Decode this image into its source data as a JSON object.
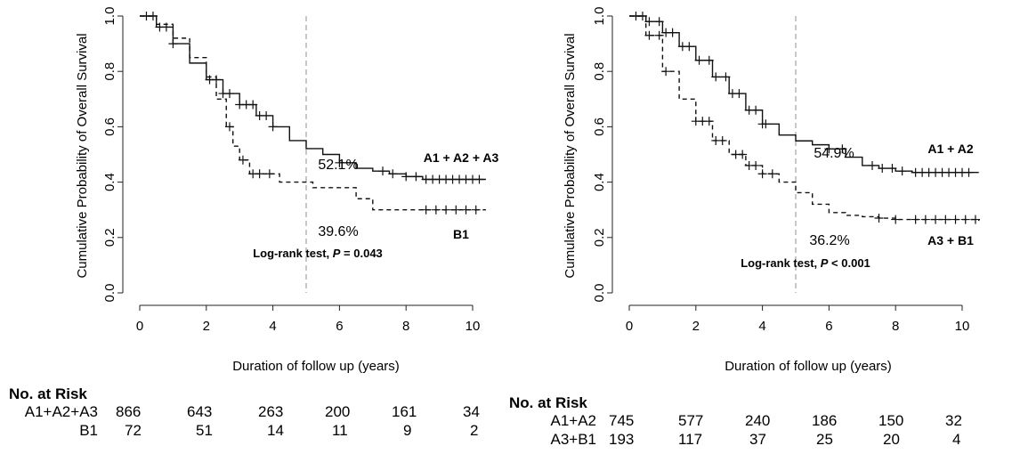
{
  "chart_data": [
    {
      "type": "line",
      "subtype": "kaplan-meier",
      "ylabel": "Cumulative Probability of Overall Survival",
      "xlabel": "Duration of follow up (years)",
      "xlim": [
        0,
        10.5
      ],
      "ylim": [
        0,
        1
      ],
      "xticks": [
        "0",
        "2",
        "4",
        "6",
        "8",
        "10"
      ],
      "yticks": [
        "0.0",
        "0.2",
        "0.4",
        "0.6",
        "0.8",
        "1.0"
      ],
      "reference_line_x": 5,
      "annotations": [
        "52.1%",
        "39.6%"
      ],
      "test_text": "Log-rank test, ",
      "test_p": "P",
      "test_value": " = 0.043",
      "series": [
        {
          "name": "A1 + A2 + A3",
          "style": "solid",
          "x": [
            0,
            0.5,
            1,
            1.5,
            2,
            2.5,
            3,
            3.5,
            4,
            4.5,
            5,
            5.5,
            6,
            6.5,
            7,
            7.5,
            8,
            8.5,
            9,
            10.4
          ],
          "y": [
            1.0,
            0.96,
            0.9,
            0.83,
            0.77,
            0.72,
            0.68,
            0.64,
            0.6,
            0.55,
            0.521,
            0.5,
            0.47,
            0.45,
            0.44,
            0.43,
            0.42,
            0.41,
            0.41,
            0.41
          ],
          "censor_x": [
            0.2,
            0.4,
            0.6,
            0.8,
            1.0,
            2.1,
            2.3,
            2.5,
            2.7,
            3.0,
            3.2,
            3.4,
            3.6,
            3.8,
            4.0,
            6.0,
            7.3,
            7.6,
            8.0,
            8.3,
            8.6,
            8.8,
            9.0,
            9.2,
            9.4,
            9.6,
            9.8,
            10.0,
            10.2
          ]
        },
        {
          "name": "B1",
          "style": "dashed",
          "x": [
            0,
            0.5,
            1,
            1.5,
            2,
            2.3,
            2.6,
            2.8,
            3.0,
            3.3,
            4.2,
            5.2,
            6.5,
            7.0,
            8.0,
            10.4
          ],
          "y": [
            1.0,
            0.97,
            0.92,
            0.85,
            0.78,
            0.7,
            0.6,
            0.53,
            0.48,
            0.43,
            0.4,
            0.38,
            0.34,
            0.3,
            0.3,
            0.3
          ],
          "censor_x": [
            2.7,
            3.1,
            3.4,
            3.6,
            3.9,
            8.6,
            8.9,
            9.2,
            9.5,
            9.8,
            10.1
          ]
        }
      ],
      "risk_table": {
        "title": "No. at Risk",
        "rows": [
          {
            "label": "A1+A2+A3",
            "values": [
              "866",
              "643",
              "263",
              "200",
              "161",
              "34"
            ]
          },
          {
            "label": "B1",
            "values": [
              "72",
              "51",
              "14",
              "11",
              "9",
              "2"
            ]
          }
        ]
      }
    },
    {
      "type": "line",
      "subtype": "kaplan-meier",
      "ylabel": "Cumulative Probability of Overall Survival",
      "xlabel": "Duration of follow up (years)",
      "xlim": [
        0,
        10.5
      ],
      "ylim": [
        0,
        1
      ],
      "xticks": [
        "0",
        "2",
        "4",
        "6",
        "8",
        "10"
      ],
      "yticks": [
        "0.0",
        "0.2",
        "0.4",
        "0.6",
        "0.8",
        "1.0"
      ],
      "reference_line_x": 5,
      "annotations": [
        "54.9%",
        "36.2%"
      ],
      "test_text": "Log-rank test, ",
      "test_p": "P",
      "test_value": " < 0.001",
      "series": [
        {
          "name": "A1 + A2",
          "style": "solid",
          "x": [
            0,
            0.5,
            1,
            1.5,
            2,
            2.5,
            3,
            3.5,
            4,
            4.5,
            5,
            5.5,
            6,
            6.5,
            7,
            7.5,
            8,
            8.5,
            9,
            10.5
          ],
          "y": [
            1.0,
            0.98,
            0.94,
            0.89,
            0.84,
            0.78,
            0.72,
            0.66,
            0.61,
            0.57,
            0.549,
            0.535,
            0.52,
            0.49,
            0.46,
            0.45,
            0.44,
            0.435,
            0.435,
            0.435
          ],
          "censor_x": [
            0.2,
            0.4,
            0.6,
            0.9,
            1.1,
            1.3,
            1.6,
            1.8,
            2.1,
            2.4,
            2.6,
            2.9,
            3.1,
            3.3,
            3.6,
            3.8,
            4.0,
            4.1,
            6.0,
            6.4,
            7.3,
            7.6,
            7.9,
            8.2,
            8.6,
            8.8,
            9.0,
            9.2,
            9.4,
            9.6,
            9.8,
            10.0,
            10.2
          ]
        },
        {
          "name": "A3 + B1",
          "style": "dashed",
          "x": [
            0,
            0.5,
            1,
            1.5,
            2,
            2.5,
            3,
            3.5,
            4,
            4.5,
            5,
            5.5,
            6,
            6.5,
            7,
            7.5,
            8,
            10.5
          ],
          "y": [
            1.0,
            0.93,
            0.8,
            0.7,
            0.62,
            0.55,
            0.5,
            0.46,
            0.43,
            0.4,
            0.362,
            0.32,
            0.29,
            0.28,
            0.275,
            0.27,
            0.265,
            0.26
          ],
          "censor_x": [
            0.6,
            0.9,
            1.1,
            2.0,
            2.2,
            2.4,
            2.6,
            2.8,
            3.2,
            3.4,
            3.6,
            3.8,
            4.0,
            4.3,
            7.5,
            8.0,
            8.6,
            8.9,
            9.2,
            9.5,
            9.8,
            10.1,
            10.4
          ]
        }
      ],
      "risk_table": {
        "title": "No. at Risk",
        "rows": [
          {
            "label": "A1+A2",
            "values": [
              "745",
              "577",
              "240",
              "186",
              "150",
              "32"
            ]
          },
          {
            "label": "A3+B1",
            "values": [
              "193",
              "117",
              "37",
              "25",
              "20",
              "4"
            ]
          }
        ]
      }
    }
  ]
}
